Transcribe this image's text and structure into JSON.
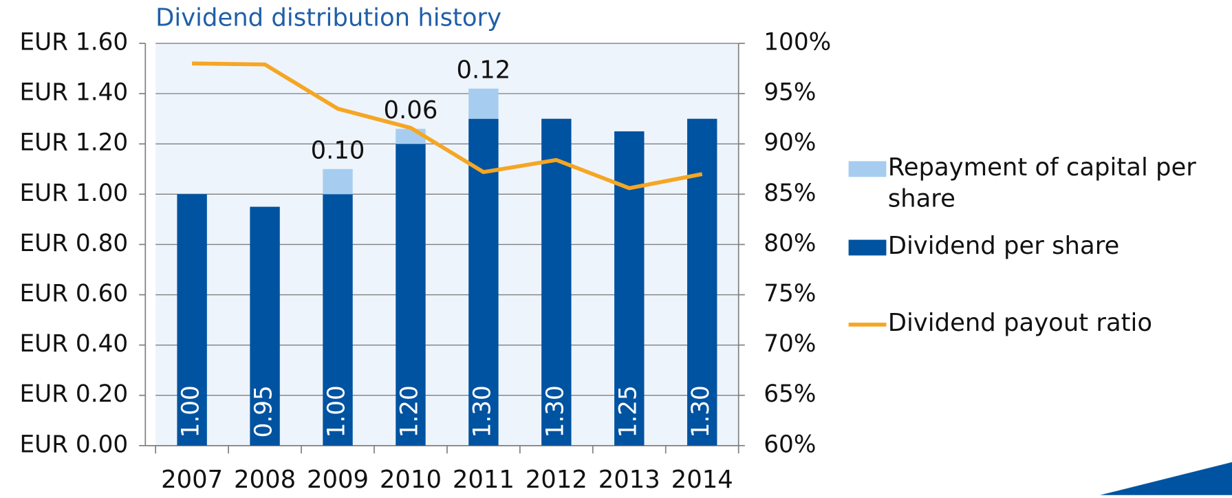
{
  "chart_data": {
    "type": "stacked_bar_line",
    "title": "Dividend distribution history",
    "categories": [
      "2007",
      "2008",
      "2009",
      "2010",
      "2011",
      "2012",
      "2013",
      "2014"
    ],
    "series": [
      {
        "name": "Dividend per share",
        "color": "#0053a0",
        "values": [
          1.0,
          0.95,
          1.0,
          1.2,
          1.3,
          1.3,
          1.25,
          1.3
        ],
        "value_labels": [
          "1.00",
          "0.95",
          "1.00",
          "1.20",
          "1.30",
          "1.30",
          "1.25",
          "1.30"
        ]
      },
      {
        "name": "Repayment of capital per share",
        "color": "#a6cdf0",
        "values": [
          null,
          null,
          0.1,
          0.06,
          0.12,
          null,
          null,
          null
        ],
        "value_labels": [
          null,
          null,
          "0.10",
          "0.06",
          "0.12",
          null,
          null,
          null
        ]
      },
      {
        "name": "Dividend payout ratio",
        "color": "#f5a623",
        "axis": "y2",
        "values": [
          98.0,
          97.9,
          93.5,
          91.6,
          87.2,
          88.4,
          85.6,
          87.0
        ]
      }
    ],
    "ylim": [
      0,
      1.6
    ],
    "yticks": [
      {
        "value": 0,
        "label": "EUR 0.00"
      },
      {
        "value": 0.2,
        "label": "EUR 0.20"
      },
      {
        "value": 0.4,
        "label": "EUR 0.40"
      },
      {
        "value": 0.6,
        "label": "EUR 0.60"
      },
      {
        "value": 0.8,
        "label": "EUR 0.80"
      },
      {
        "value": 1.0,
        "label": "EUR 1.00"
      },
      {
        "value": 1.2,
        "label": "EUR 1.20"
      },
      {
        "value": 1.4,
        "label": "EUR 1.40"
      },
      {
        "value": 1.6,
        "label": "EUR 1.60"
      }
    ],
    "y2lim": [
      60,
      100
    ],
    "y2ticks": [
      {
        "value": 60,
        "label": "60%"
      },
      {
        "value": 65,
        "label": "65%"
      },
      {
        "value": 70,
        "label": "70%"
      },
      {
        "value": 75,
        "label": "75%"
      },
      {
        "value": 80,
        "label": "80%"
      },
      {
        "value": 85,
        "label": "85%"
      },
      {
        "value": 90,
        "label": "90%"
      },
      {
        "value": 95,
        "label": "95%"
      },
      {
        "value": 100,
        "label": "100%"
      }
    ],
    "grid": true,
    "legend": "right"
  }
}
